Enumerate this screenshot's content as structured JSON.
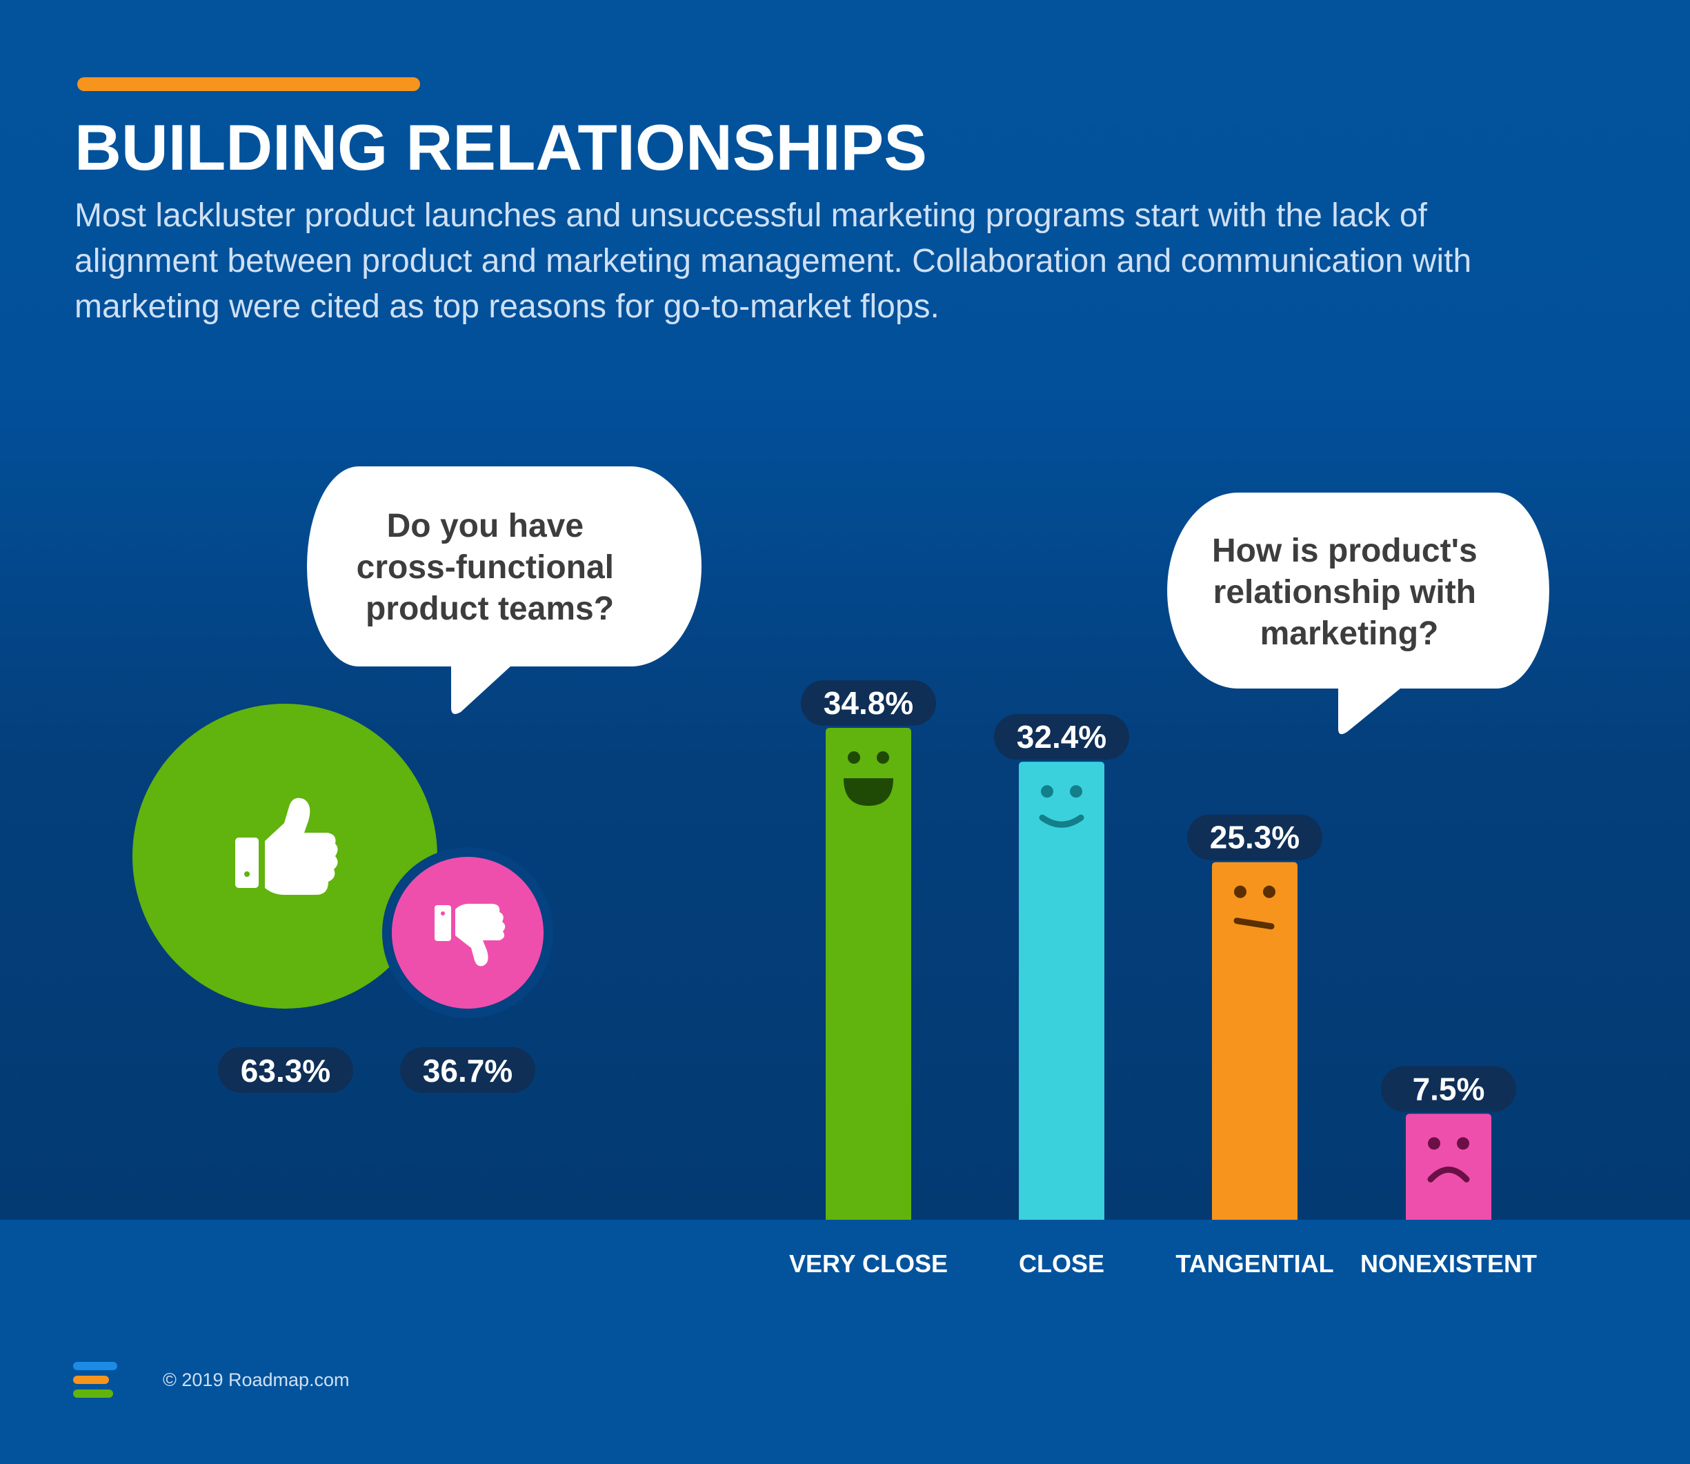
{
  "header": {
    "title": "BUILDING RELATIONSHIPS",
    "subtitle": "Most lackluster product launches and unsuccessful marketing programs start with the lack of alignment between product and marketing management. Collaboration and communication with marketing were cited as top reasons for go-to-market flops."
  },
  "chart_data": [
    {
      "type": "bubble",
      "question": [
        "Do you have",
        "cross-functional",
        "product teams?"
      ],
      "categories": [
        "Yes",
        "No"
      ],
      "values": [
        63.3,
        36.7
      ],
      "labels": [
        "63.3%",
        "36.7%"
      ],
      "icons": [
        "thumbs-up-icon",
        "thumbs-down-icon"
      ],
      "colors": [
        "#61b30e",
        "#ee4fad"
      ]
    },
    {
      "type": "bar",
      "question": [
        "How is product's",
        "relationship with",
        "marketing?"
      ],
      "categories": [
        "VERY CLOSE",
        "CLOSE",
        "TANGENTIAL",
        "NONEXISTENT"
      ],
      "values": [
        34.8,
        32.4,
        25.3,
        7.5
      ],
      "labels": [
        "34.8%",
        "32.4%",
        "25.3%",
        "7.5%"
      ],
      "faces": [
        "big-smile-face-icon",
        "smile-face-icon",
        "neutral-face-icon",
        "frown-face-icon"
      ],
      "colors": [
        "#61b30e",
        "#3ad1dc",
        "#f7941d",
        "#ee4fad"
      ],
      "ylim": [
        0,
        34.8
      ]
    }
  ],
  "footer": {
    "copyright": "© 2019 Roadmap.com",
    "logo_colors": [
      "#1b8be6",
      "#f7941d",
      "#61b30e"
    ]
  },
  "colors": {
    "accent": "#f7941d",
    "pill": "#0f2f57",
    "background": "#02539c"
  }
}
